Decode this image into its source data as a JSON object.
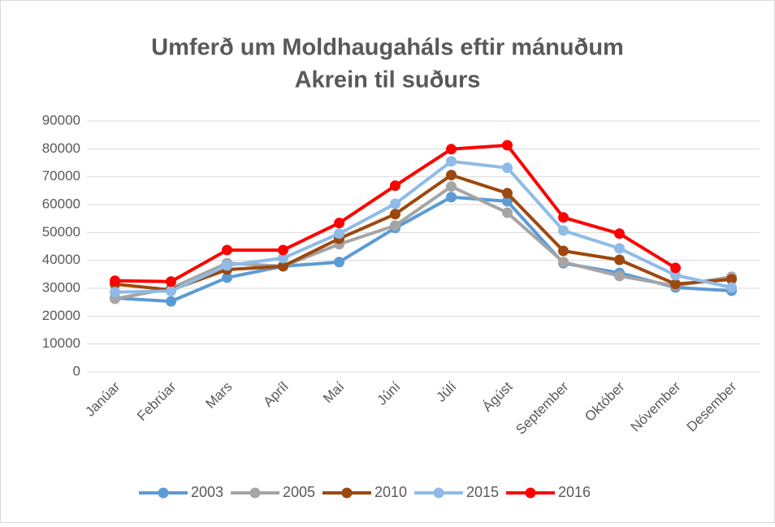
{
  "chart_data": {
    "type": "line",
    "title_lines": [
      "Umferð um Moldhaugaháls eftir mánuðum",
      "Akrein til suðurs"
    ],
    "categories": [
      "Janúar",
      "Febrúar",
      "Mars",
      "Apríl",
      "Maí",
      "Júní",
      "Júlí",
      "Ágúst",
      "September",
      "Október",
      "Nóvember",
      "Desember"
    ],
    "series": [
      {
        "name": "2003",
        "color": "#5b9bd5",
        "values": [
          26500,
          25300,
          33800,
          37900,
          39400,
          51600,
          62700,
          61200,
          39000,
          35500,
          30300,
          29100
        ]
      },
      {
        "name": "2005",
        "color": "#a5a5a5",
        "values": [
          26200,
          30000,
          39000,
          37900,
          45800,
          52500,
          66500,
          57100,
          39400,
          34400,
          30900,
          34100
        ]
      },
      {
        "name": "2010",
        "color": "#9e480e",
        "values": [
          31500,
          29400,
          36700,
          37900,
          47800,
          56600,
          70600,
          64100,
          43400,
          40200,
          31500,
          33200
        ]
      },
      {
        "name": "2015",
        "color": "#8fbbe6",
        "values": [
          28600,
          29000,
          38200,
          40800,
          49600,
          60300,
          75500,
          73200,
          50700,
          44300,
          34700,
          30300
        ]
      },
      {
        "name": "2016",
        "color": "#ff0000",
        "values": [
          32700,
          32400,
          43700,
          43700,
          53400,
          66800,
          79900,
          81300,
          55400,
          49600,
          37300,
          null
        ]
      }
    ],
    "ylim": [
      0,
      90000
    ],
    "yticks": [
      0,
      10000,
      20000,
      30000,
      40000,
      50000,
      60000,
      70000,
      80000,
      90000
    ],
    "grid": true,
    "legend": "bottom"
  }
}
